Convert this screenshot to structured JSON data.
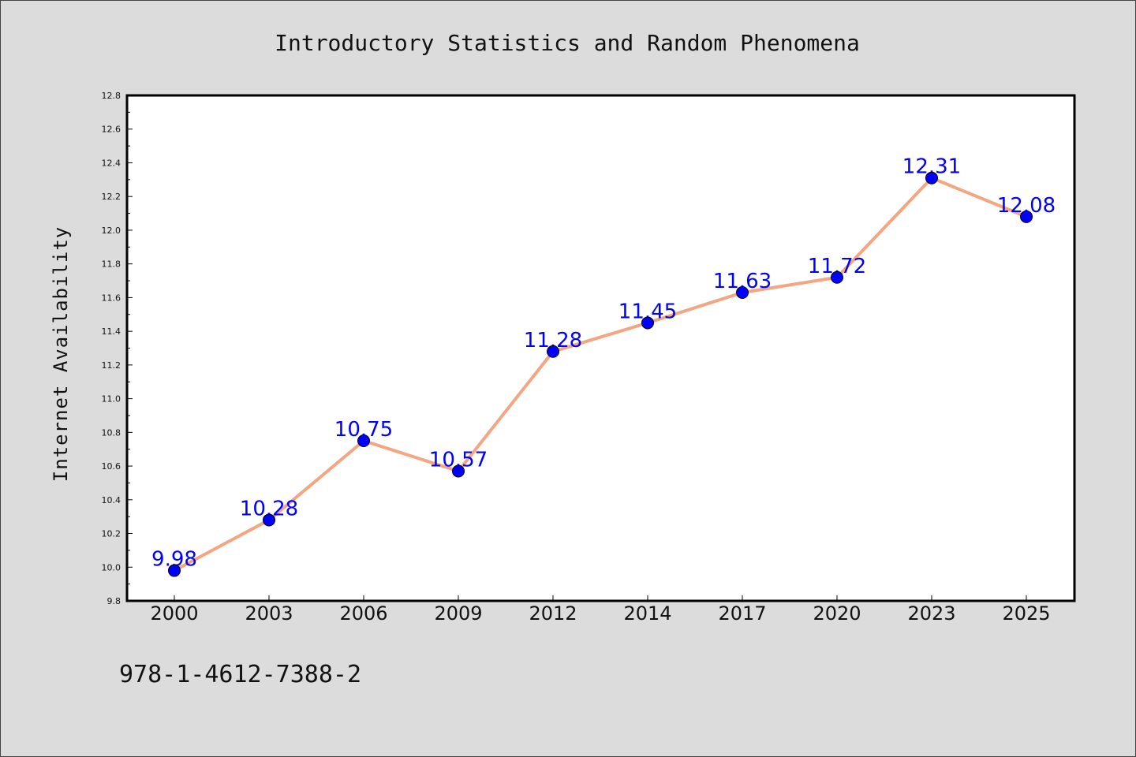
{
  "chart_data": {
    "type": "line",
    "title": "Introductory Statistics and Random Phenomena",
    "xlabel": "",
    "ylabel": "Internet Availability",
    "categories": [
      "2000",
      "2003",
      "2006",
      "2009",
      "2012",
      "2014",
      "2017",
      "2020",
      "2023",
      "2025"
    ],
    "series": [
      {
        "values": [
          9.98,
          10.28,
          10.75,
          10.57,
          11.28,
          11.45,
          11.63,
          11.72,
          12.31,
          12.08
        ],
        "labels": [
          "9.98",
          "10.28",
          "10.75",
          "10.57",
          "11.28",
          "11.45",
          "11.63",
          "11.72",
          "12.31",
          "12.08"
        ]
      }
    ],
    "ylim": [
      9.8,
      12.8
    ],
    "yticks": [
      "9.8",
      "10.0",
      "10.2",
      "10.4",
      "10.6",
      "10.8",
      "11.0",
      "11.2",
      "11.4",
      "11.6",
      "11.8",
      "12.0",
      "12.2",
      "12.4",
      "12.6",
      "12.8"
    ],
    "grid": false,
    "colors": {
      "line": "#f4a582",
      "marker": "#0000ff",
      "label": "#0000ff",
      "background": "#dcdcdc",
      "plot_background": "#ffffff"
    }
  },
  "footer": {
    "isbn": "978-1-4612-7388-2"
  }
}
